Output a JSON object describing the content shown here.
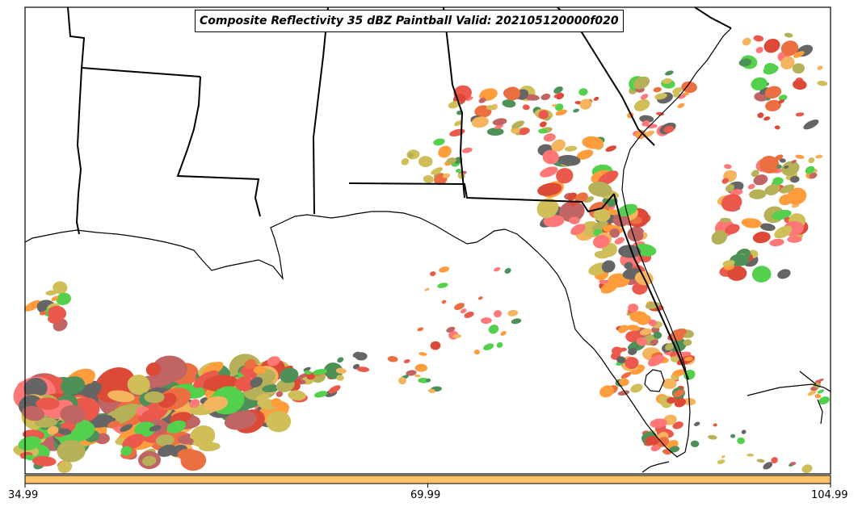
{
  "map": {
    "title": "Composite Reflectivity 35 dBZ Paintball Valid: 202105120000f020",
    "region": "Southeastern United States / Gulf of Mexico / Florida",
    "member_colors": [
      "#e83a2c",
      "#ff8c1a",
      "#35c92e",
      "#a9a33a",
      "#b54848",
      "#2e7d3a",
      "#f4a742",
      "#d62a14",
      "#e8561e",
      "#c8b43c",
      "#4a4a4a",
      "#ff5f5f"
    ],
    "colorbar": {
      "color": "#ffc266",
      "tick_labels": [
        "34.99",
        "69.99",
        "104.99"
      ]
    }
  }
}
